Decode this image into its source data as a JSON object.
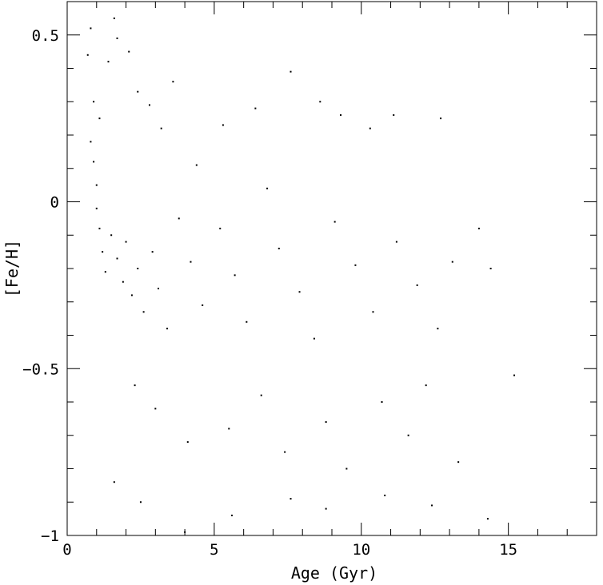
{
  "chart_data": {
    "type": "scatter",
    "title": "",
    "xlabel": "Age (Gyr)",
    "ylabel": "[Fe/H]",
    "xlim": [
      0,
      18
    ],
    "ylim": [
      -1,
      0.6
    ],
    "x_major_ticks": [
      0,
      5,
      10,
      15
    ],
    "x_tick_labels": [
      "0",
      "5",
      "10",
      "15"
    ],
    "y_major_ticks": [
      -1,
      -0.5,
      0,
      0.5
    ],
    "y_tick_labels": [
      "−1",
      "−0.5",
      "0",
      "0.5"
    ],
    "x_minor_step": 1,
    "y_minor_step": 0.1,
    "grid": false,
    "legend": "none",
    "marker_color": "#000000",
    "series": [
      {
        "points": [
          [
            0.7,
            0.44
          ],
          [
            0.8,
            0.52
          ],
          [
            1.6,
            0.55
          ],
          [
            1.7,
            0.49
          ],
          [
            0.9,
            0.3
          ],
          [
            1.1,
            0.25
          ],
          [
            1.4,
            0.42
          ],
          [
            2.1,
            0.45
          ],
          [
            2.4,
            0.33
          ],
          [
            2.8,
            0.29
          ],
          [
            3.2,
            0.22
          ],
          [
            3.6,
            0.36
          ],
          [
            4.4,
            0.11
          ],
          [
            5.3,
            0.23
          ],
          [
            6.4,
            0.28
          ],
          [
            7.6,
            0.39
          ],
          [
            8.6,
            0.3
          ],
          [
            9.3,
            0.26
          ],
          [
            10.3,
            0.22
          ],
          [
            11.1,
            0.26
          ],
          [
            12.7,
            0.25
          ],
          [
            0.8,
            0.18
          ],
          [
            0.9,
            0.12
          ],
          [
            1.0,
            0.05
          ],
          [
            1.0,
            -0.02
          ],
          [
            1.1,
            -0.08
          ],
          [
            1.2,
            -0.15
          ],
          [
            1.3,
            -0.21
          ],
          [
            1.5,
            -0.1
          ],
          [
            1.7,
            -0.17
          ],
          [
            1.9,
            -0.24
          ],
          [
            2.0,
            -0.12
          ],
          [
            2.2,
            -0.28
          ],
          [
            2.4,
            -0.2
          ],
          [
            2.6,
            -0.33
          ],
          [
            2.9,
            -0.15
          ],
          [
            3.1,
            -0.26
          ],
          [
            3.4,
            -0.38
          ],
          [
            3.8,
            -0.05
          ],
          [
            4.2,
            -0.18
          ],
          [
            4.6,
            -0.31
          ],
          [
            5.2,
            -0.08
          ],
          [
            5.7,
            -0.22
          ],
          [
            6.1,
            -0.36
          ],
          [
            6.8,
            0.04
          ],
          [
            7.2,
            -0.14
          ],
          [
            7.9,
            -0.27
          ],
          [
            8.4,
            -0.41
          ],
          [
            9.1,
            -0.06
          ],
          [
            9.8,
            -0.19
          ],
          [
            10.4,
            -0.33
          ],
          [
            11.2,
            -0.12
          ],
          [
            11.9,
            -0.25
          ],
          [
            12.6,
            -0.38
          ],
          [
            13.1,
            -0.18
          ],
          [
            14.0,
            -0.08
          ],
          [
            14.4,
            -0.2
          ],
          [
            2.3,
            -0.55
          ],
          [
            3.0,
            -0.62
          ],
          [
            4.1,
            -0.72
          ],
          [
            5.5,
            -0.68
          ],
          [
            6.6,
            -0.58
          ],
          [
            7.4,
            -0.75
          ],
          [
            8.8,
            -0.66
          ],
          [
            9.5,
            -0.8
          ],
          [
            10.7,
            -0.6
          ],
          [
            11.6,
            -0.7
          ],
          [
            12.2,
            -0.55
          ],
          [
            13.3,
            -0.78
          ],
          [
            1.6,
            -0.84
          ],
          [
            2.5,
            -0.9
          ],
          [
            4.0,
            -0.99
          ],
          [
            5.6,
            -0.94
          ],
          [
            7.6,
            -0.89
          ],
          [
            8.8,
            -0.92
          ],
          [
            10.8,
            -0.88
          ],
          [
            12.4,
            -0.91
          ],
          [
            14.3,
            -0.95
          ],
          [
            15.2,
            -0.52
          ]
        ]
      }
    ]
  }
}
